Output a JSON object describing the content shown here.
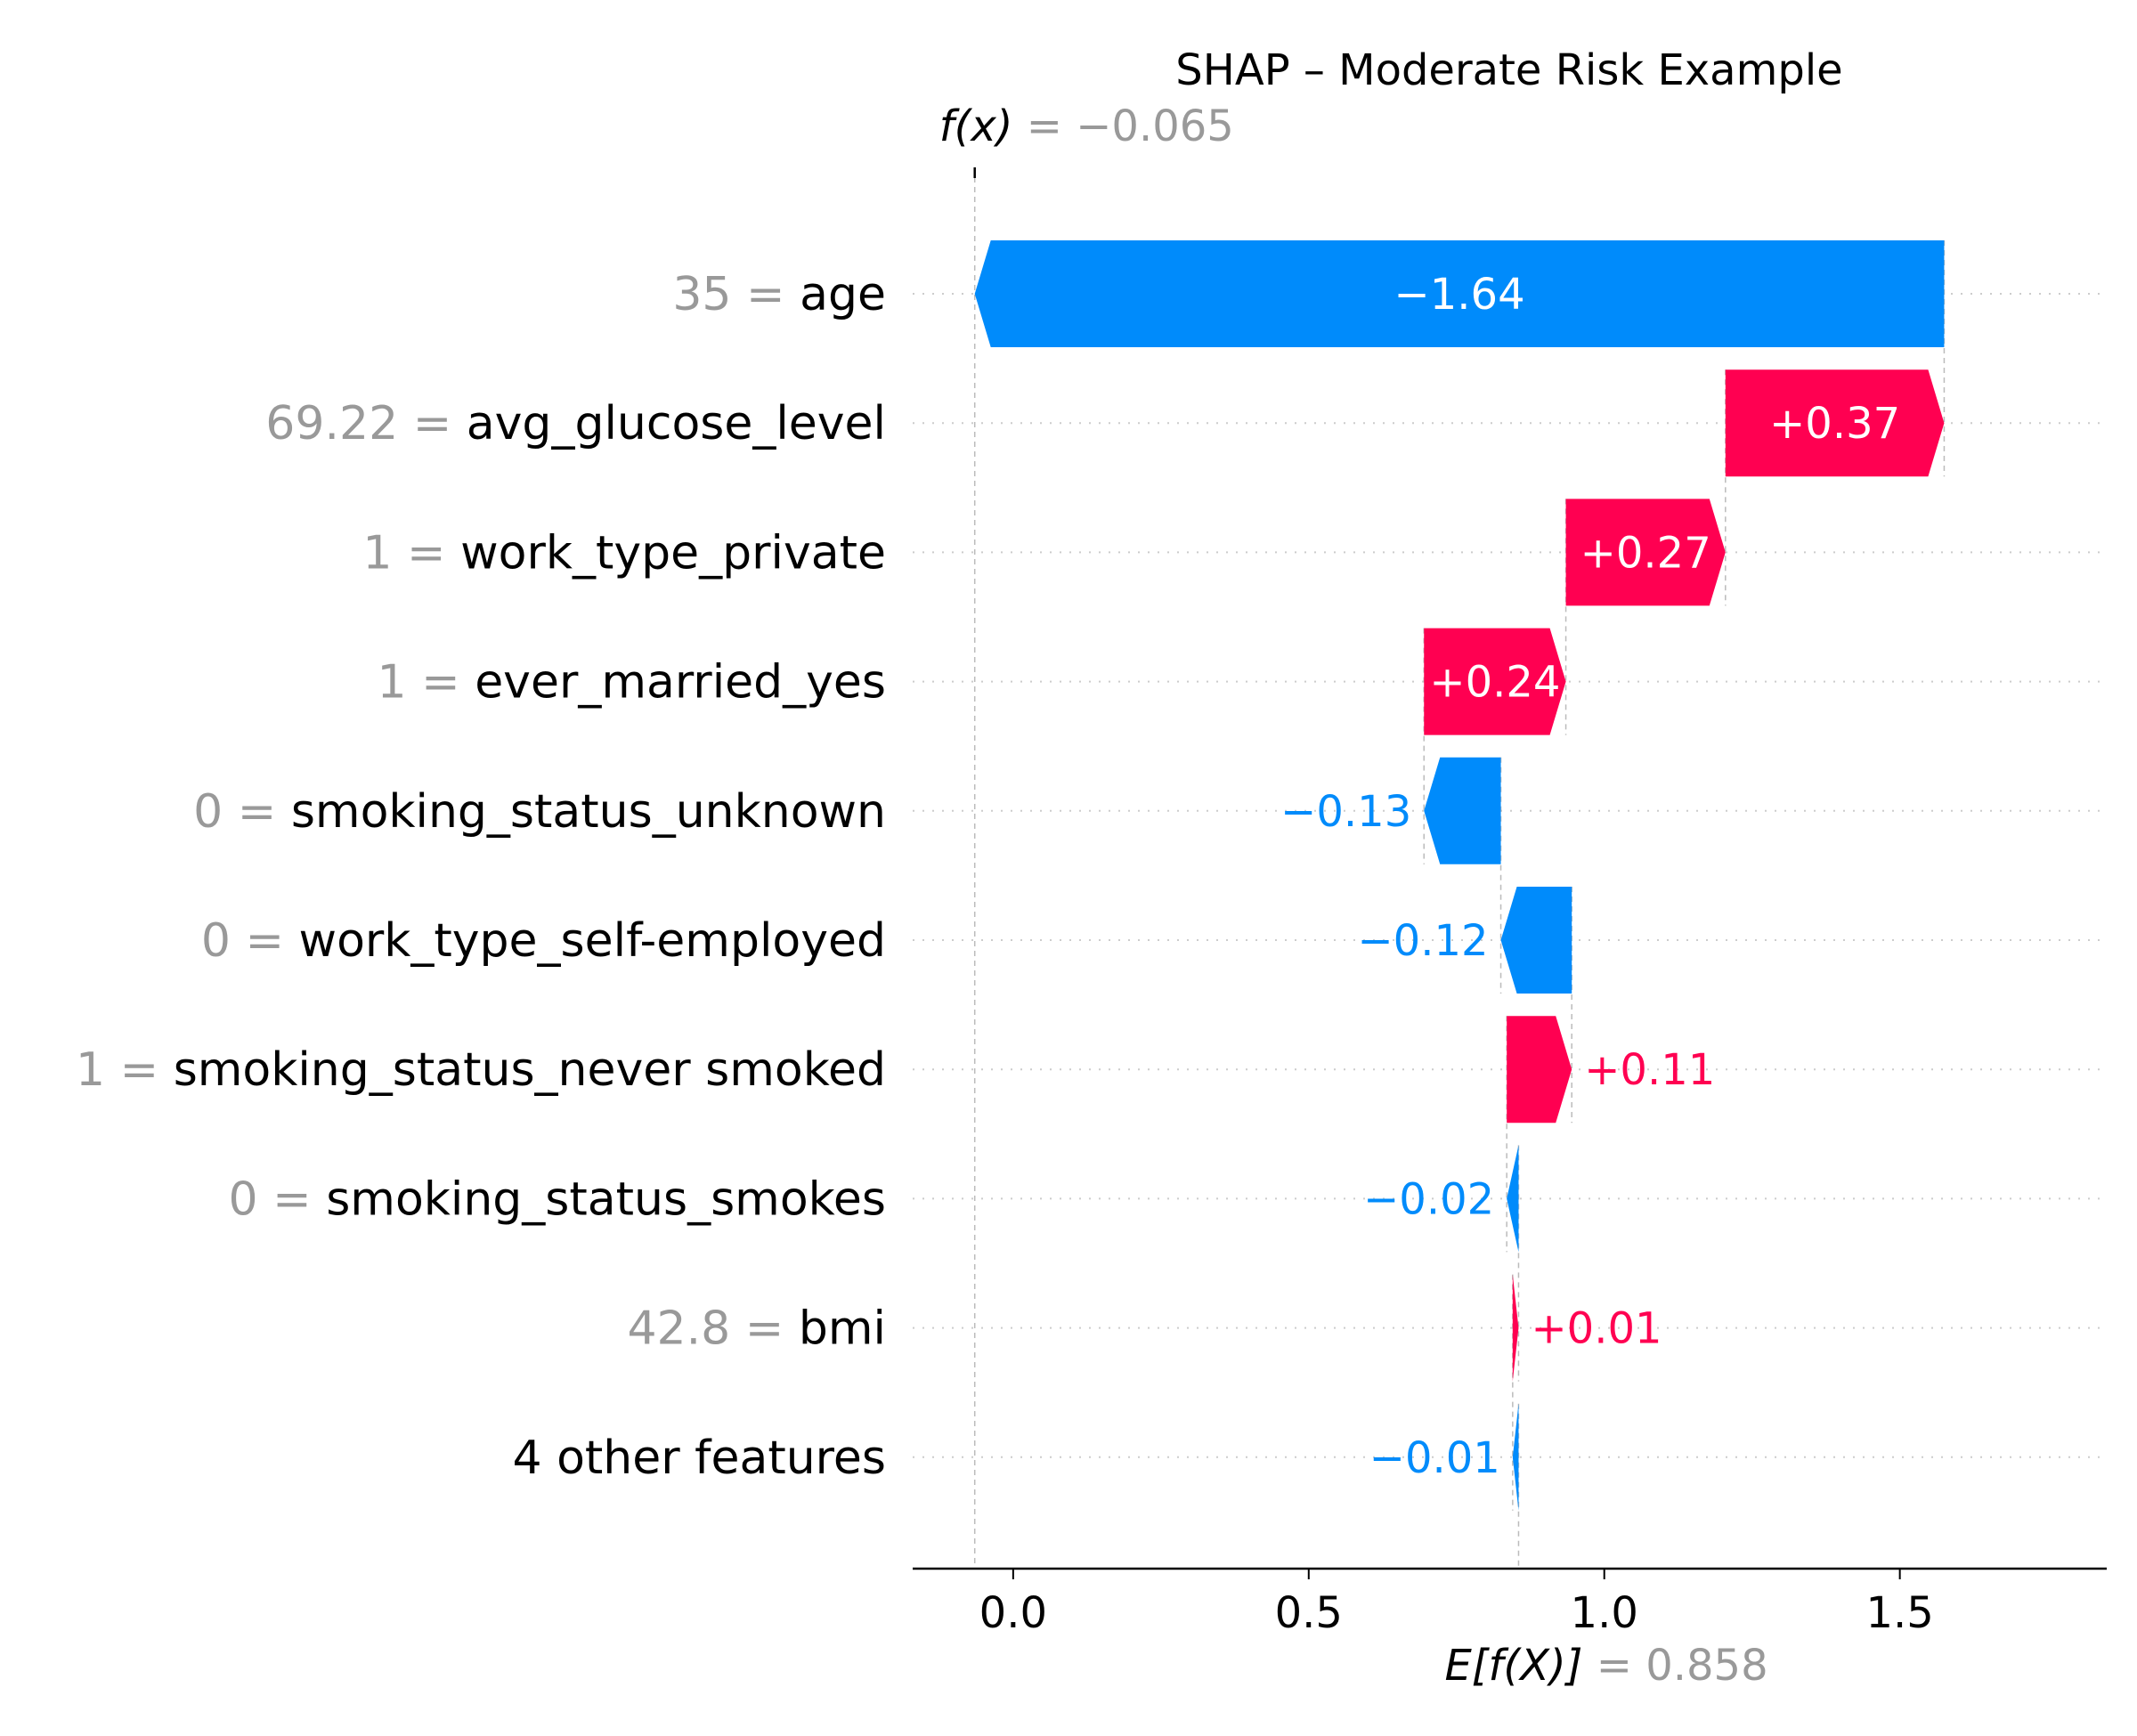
{
  "chart_data": {
    "type": "waterfall",
    "title": "SHAP – Moderate Risk Example",
    "fx": {
      "label": "f(x)",
      "value_text": "= −0.065",
      "value": -0.065
    },
    "expected": {
      "label": "E[f(X)]",
      "value_text": "= 0.858",
      "value": 0.858
    },
    "xlim": [
      -0.17,
      1.85
    ],
    "x_ticks": [
      {
        "value": 0.0,
        "label": "0.0"
      },
      {
        "value": 0.5,
        "label": "0.5"
      },
      {
        "value": 1.0,
        "label": "1.0"
      },
      {
        "value": 1.5,
        "label": "1.5"
      }
    ],
    "grid": "dotted horizontal per feature row",
    "colors": {
      "positive": "#ff0051",
      "negative": "#008bfb",
      "muted": "#999999",
      "text": "#000000"
    },
    "features": [
      {
        "value_text": "35",
        "name": "age",
        "shap": -1.64,
        "label": "−1.64"
      },
      {
        "value_text": "69.22",
        "name": "avg_glucose_level",
        "shap": 0.37,
        "label": "+0.37"
      },
      {
        "value_text": "1",
        "name": "work_type_private",
        "shap": 0.27,
        "label": "+0.27"
      },
      {
        "value_text": "1",
        "name": "ever_married_yes",
        "shap": 0.24,
        "label": "+0.24"
      },
      {
        "value_text": "0",
        "name": "smoking_status_unknown",
        "shap": -0.13,
        "label": "−0.13"
      },
      {
        "value_text": "0",
        "name": "work_type_self-employed",
        "shap": -0.12,
        "label": "−0.12"
      },
      {
        "value_text": "1",
        "name": "smoking_status_never smoked",
        "shap": 0.11,
        "label": "+0.11"
      },
      {
        "value_text": "0",
        "name": "smoking_status_smokes",
        "shap": -0.02,
        "label": "−0.02"
      },
      {
        "value_text": "42.8",
        "name": "bmi",
        "shap": 0.01,
        "label": "+0.01"
      },
      {
        "value_text": "",
        "name": "4 other features",
        "shap": -0.01,
        "label": "−0.01"
      }
    ]
  }
}
